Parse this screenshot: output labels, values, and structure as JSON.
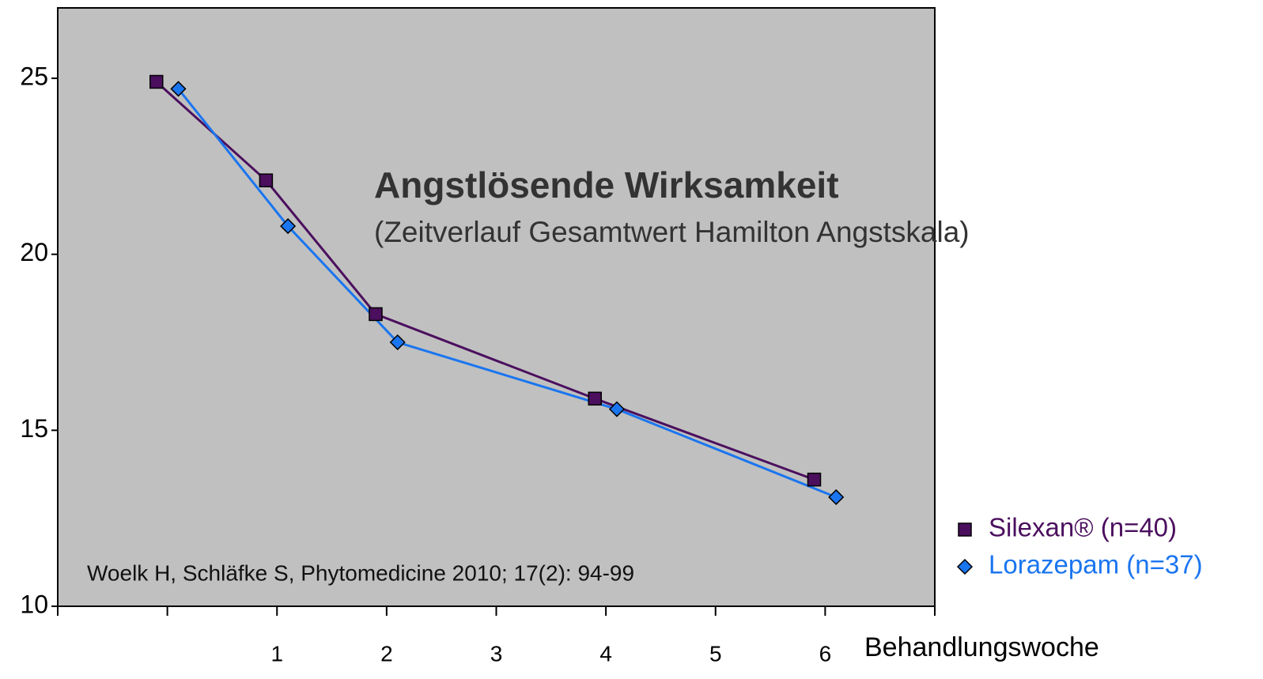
{
  "chart_data": {
    "type": "line",
    "title": "Angstlösende Wirksamkeit",
    "subtitle": "(Zeitverlauf Gesamtwert Hamilton Angstskala)",
    "annotation": "Woelk H, Schläfke S, Phytomedicine 2010; 17(2): 94-99",
    "x_label": "Behandlungswoche",
    "xlim": [
      -1,
      7
    ],
    "xticks": [
      {
        "value": -1,
        "label": null
      },
      {
        "value": 0,
        "label": null
      },
      1,
      2,
      3,
      4,
      5,
      6,
      {
        "value": 7,
        "label": null
      }
    ],
    "ylim": [
      10,
      27
    ],
    "yticks": [
      10,
      15,
      20,
      25
    ],
    "grid": false,
    "legend": "right",
    "plot_background": "#c0c0c0",
    "series": [
      {
        "name": "Silexan® (n=40)",
        "color": "#4b0f5e",
        "marker": "square",
        "x": [
          -0.1,
          0.9,
          1.9,
          3.9,
          5.9
        ],
        "values": [
          24.9,
          22.1,
          18.3,
          15.9,
          13.6
        ]
      },
      {
        "name": "Lorazepam (n=37)",
        "color": "#1a75f0",
        "marker": "diamond",
        "x": [
          0.1,
          1.1,
          2.1,
          4.1,
          6.1
        ],
        "values": [
          24.7,
          20.8,
          17.5,
          15.6,
          13.1
        ]
      }
    ]
  }
}
